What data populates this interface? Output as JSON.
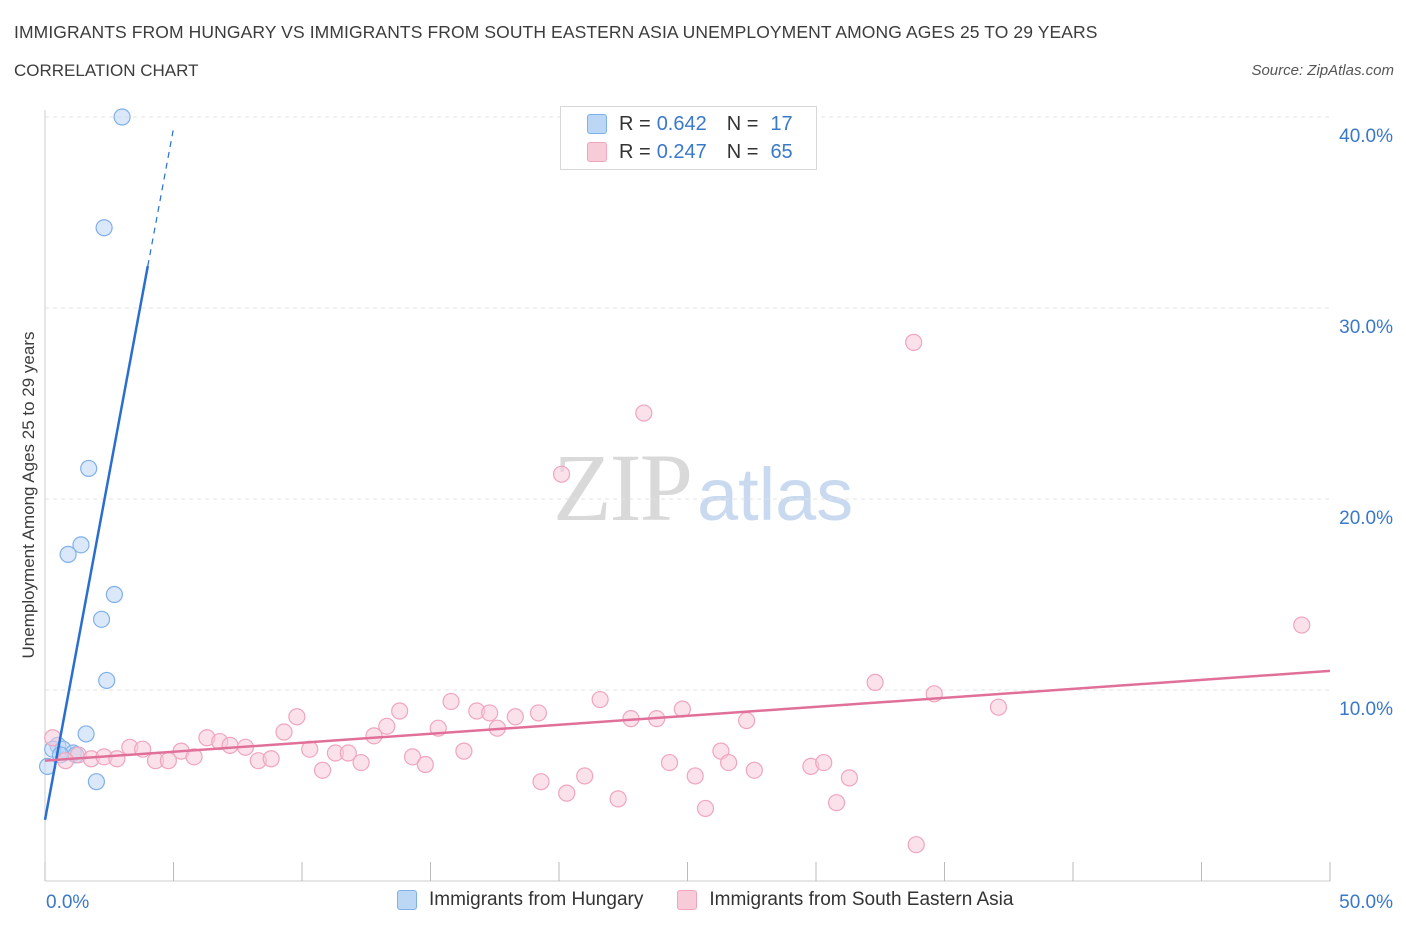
{
  "chart_data": {
    "type": "scatter",
    "title": "IMMIGRANTS FROM HUNGARY VS IMMIGRANTS FROM SOUTH EASTERN ASIA UNEMPLOYMENT AMONG AGES 25 TO 29 YEARS",
    "subtitle": "CORRELATION CHART",
    "source": "Source: ZipAtlas.com",
    "ylabel": "Unemployment Among Ages 25 to 29 years",
    "xlim": [
      0,
      50
    ],
    "ylim": [
      0,
      40
    ],
    "x_tick_labels": [
      "0.0%",
      "50.0%"
    ],
    "y_ticks": [
      10,
      20,
      30,
      40
    ],
    "y_tick_labels": [
      "10.0%",
      "20.0%",
      "30.0%",
      "40.0%"
    ],
    "grid": "horizontal dashed",
    "watermark": {
      "zip": "ZIP",
      "atlas": "atlas"
    },
    "legend_stats": [
      {
        "r_label": "R =",
        "r_value": "0.642",
        "n_label": "N =",
        "n_value": "17"
      },
      {
        "r_label": "R =",
        "r_value": "0.247",
        "n_label": "N =",
        "n_value": "65"
      }
    ],
    "series": [
      {
        "name": "Immigrants from Hungary",
        "color": "#7fb0ea",
        "fill": "#bcd6f5",
        "line_color": "#2a6fcf",
        "trend": {
          "x0": 0.0,
          "y0": 3.2,
          "x1": 4.0,
          "y1": 32.2,
          "dash_to_x": 5.0,
          "dash_to_y": 39.4
        },
        "points": [
          [
            3.0,
            40.0
          ],
          [
            2.3,
            34.2
          ],
          [
            1.7,
            21.6
          ],
          [
            1.4,
            17.6
          ],
          [
            0.9,
            17.1
          ],
          [
            2.7,
            15.0
          ],
          [
            2.2,
            13.7
          ],
          [
            2.4,
            10.5
          ],
          [
            1.6,
            7.7
          ],
          [
            0.5,
            7.1
          ],
          [
            0.7,
            6.9
          ],
          [
            0.3,
            6.9
          ],
          [
            1.1,
            6.7
          ],
          [
            0.6,
            6.6
          ],
          [
            1.2,
            6.6
          ],
          [
            0.1,
            6.0
          ],
          [
            2.0,
            5.2
          ]
        ]
      },
      {
        "name": "Immigrants from South Eastern Asia",
        "color": "#f0a5bc",
        "fill": "#f8cbd9",
        "line_color": "#e0709a",
        "trend": {
          "x0": 0.0,
          "y0": 6.3,
          "x1": 50.0,
          "y1": 11.0
        },
        "points": [
          [
            0.3,
            7.5
          ],
          [
            1.3,
            6.6
          ],
          [
            1.8,
            6.4
          ],
          [
            2.3,
            6.5
          ],
          [
            2.8,
            6.4
          ],
          [
            3.3,
            7.0
          ],
          [
            3.8,
            6.9
          ],
          [
            4.3,
            6.3
          ],
          [
            4.8,
            6.3
          ],
          [
            5.3,
            6.8
          ],
          [
            5.8,
            6.5
          ],
          [
            6.3,
            7.5
          ],
          [
            6.8,
            7.3
          ],
          [
            7.2,
            7.1
          ],
          [
            7.8,
            7.0
          ],
          [
            8.3,
            6.3
          ],
          [
            8.8,
            6.4
          ],
          [
            9.3,
            7.8
          ],
          [
            9.8,
            8.6
          ],
          [
            10.3,
            6.9
          ],
          [
            10.8,
            5.8
          ],
          [
            11.3,
            6.7
          ],
          [
            11.8,
            6.7
          ],
          [
            12.3,
            6.2
          ],
          [
            12.8,
            7.6
          ],
          [
            13.3,
            8.1
          ],
          [
            13.8,
            8.9
          ],
          [
            14.3,
            6.5
          ],
          [
            14.8,
            6.1
          ],
          [
            15.3,
            8.0
          ],
          [
            15.8,
            9.4
          ],
          [
            16.3,
            6.8
          ],
          [
            16.8,
            8.9
          ],
          [
            17.3,
            8.8
          ],
          [
            17.6,
            8.0
          ],
          [
            18.3,
            8.6
          ],
          [
            19.2,
            8.8
          ],
          [
            19.3,
            5.2
          ],
          [
            20.1,
            21.3
          ],
          [
            20.3,
            4.6
          ],
          [
            21.0,
            5.5
          ],
          [
            21.6,
            9.5
          ],
          [
            22.3,
            4.3
          ],
          [
            22.8,
            8.5
          ],
          [
            23.3,
            24.5
          ],
          [
            23.8,
            8.5
          ],
          [
            24.3,
            6.2
          ],
          [
            24.8,
            9.0
          ],
          [
            25.3,
            5.5
          ],
          [
            25.7,
            3.8
          ],
          [
            26.3,
            6.8
          ],
          [
            26.6,
            6.2
          ],
          [
            27.3,
            8.4
          ],
          [
            27.6,
            5.8
          ],
          [
            29.8,
            6.0
          ],
          [
            30.3,
            6.2
          ],
          [
            30.8,
            4.1
          ],
          [
            31.3,
            5.4
          ],
          [
            32.3,
            10.4
          ],
          [
            33.8,
            28.2
          ],
          [
            33.9,
            1.9
          ],
          [
            34.6,
            9.8
          ],
          [
            37.1,
            9.1
          ],
          [
            48.9,
            13.4
          ],
          [
            0.8,
            6.3
          ]
        ]
      }
    ]
  }
}
